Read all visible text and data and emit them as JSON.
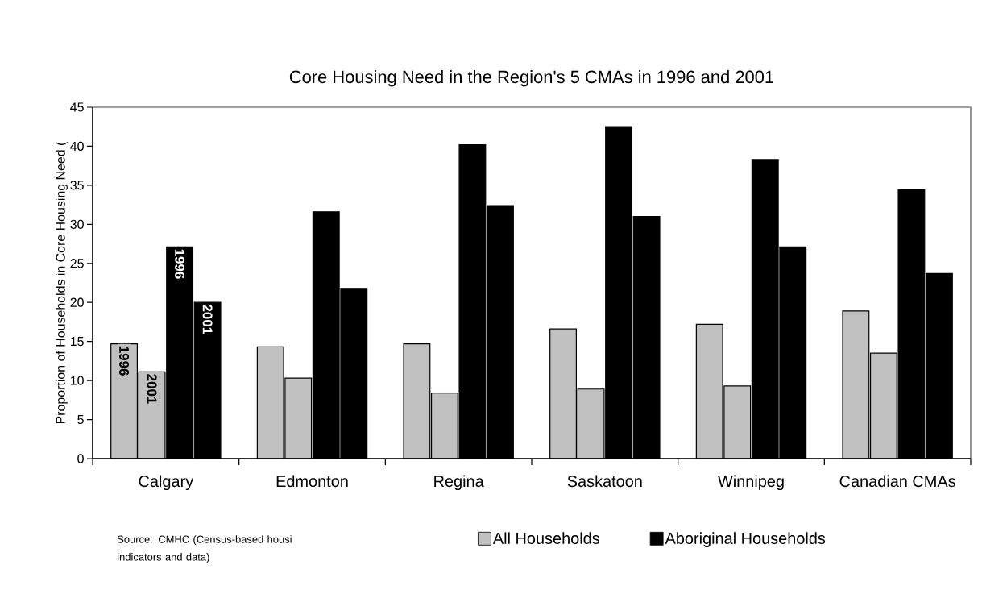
{
  "chart_data": {
    "type": "bar",
    "title": "Core Housing Need in the Region's 5 CMAs in 1996 and 2001",
    "ylabel": "Proportion of Households in Core Housing Need (",
    "categories": [
      "Calgary",
      "Edmonton",
      "Regina",
      "Saskatoon",
      "Winnipeg",
      "Canadian CMAs"
    ],
    "series": [
      {
        "name": "All Households",
        "color": "#c0c0c0",
        "values": [
          14.7,
          14.3,
          14.7,
          16.6,
          17.2,
          18.9
        ]
      },
      {
        "color": "#c0c0c0",
        "values": [
          11.1,
          10.3,
          8.4,
          8.9,
          9.3,
          13.5
        ]
      },
      {
        "name": "Aboriginal Households",
        "color": "#000000",
        "values": [
          27.1,
          31.6,
          40.2,
          42.5,
          38.3,
          34.4
        ]
      },
      {
        "color": "#000000",
        "values": [
          20.0,
          21.8,
          32.4,
          31.0,
          27.1,
          23.7
        ]
      }
    ],
    "ylim": [
      0,
      45
    ],
    "yticks": [
      0,
      5,
      10,
      15,
      20,
      25,
      30,
      35,
      40,
      45
    ],
    "legend": "bottom",
    "annotations": [
      {
        "text": "1996",
        "x": "Calgary",
        "y": 14.7
      },
      {
        "text": "2001",
        "x": "Calgary",
        "y": 11.1
      },
      {
        "text": "1996",
        "x": "Calgary",
        "y": 27.1
      },
      {
        "text": "2001",
        "x": "Calgary",
        "y": 20.0
      },
      "Source: CMHC (Census-based housi indicators and data)"
    ]
  }
}
